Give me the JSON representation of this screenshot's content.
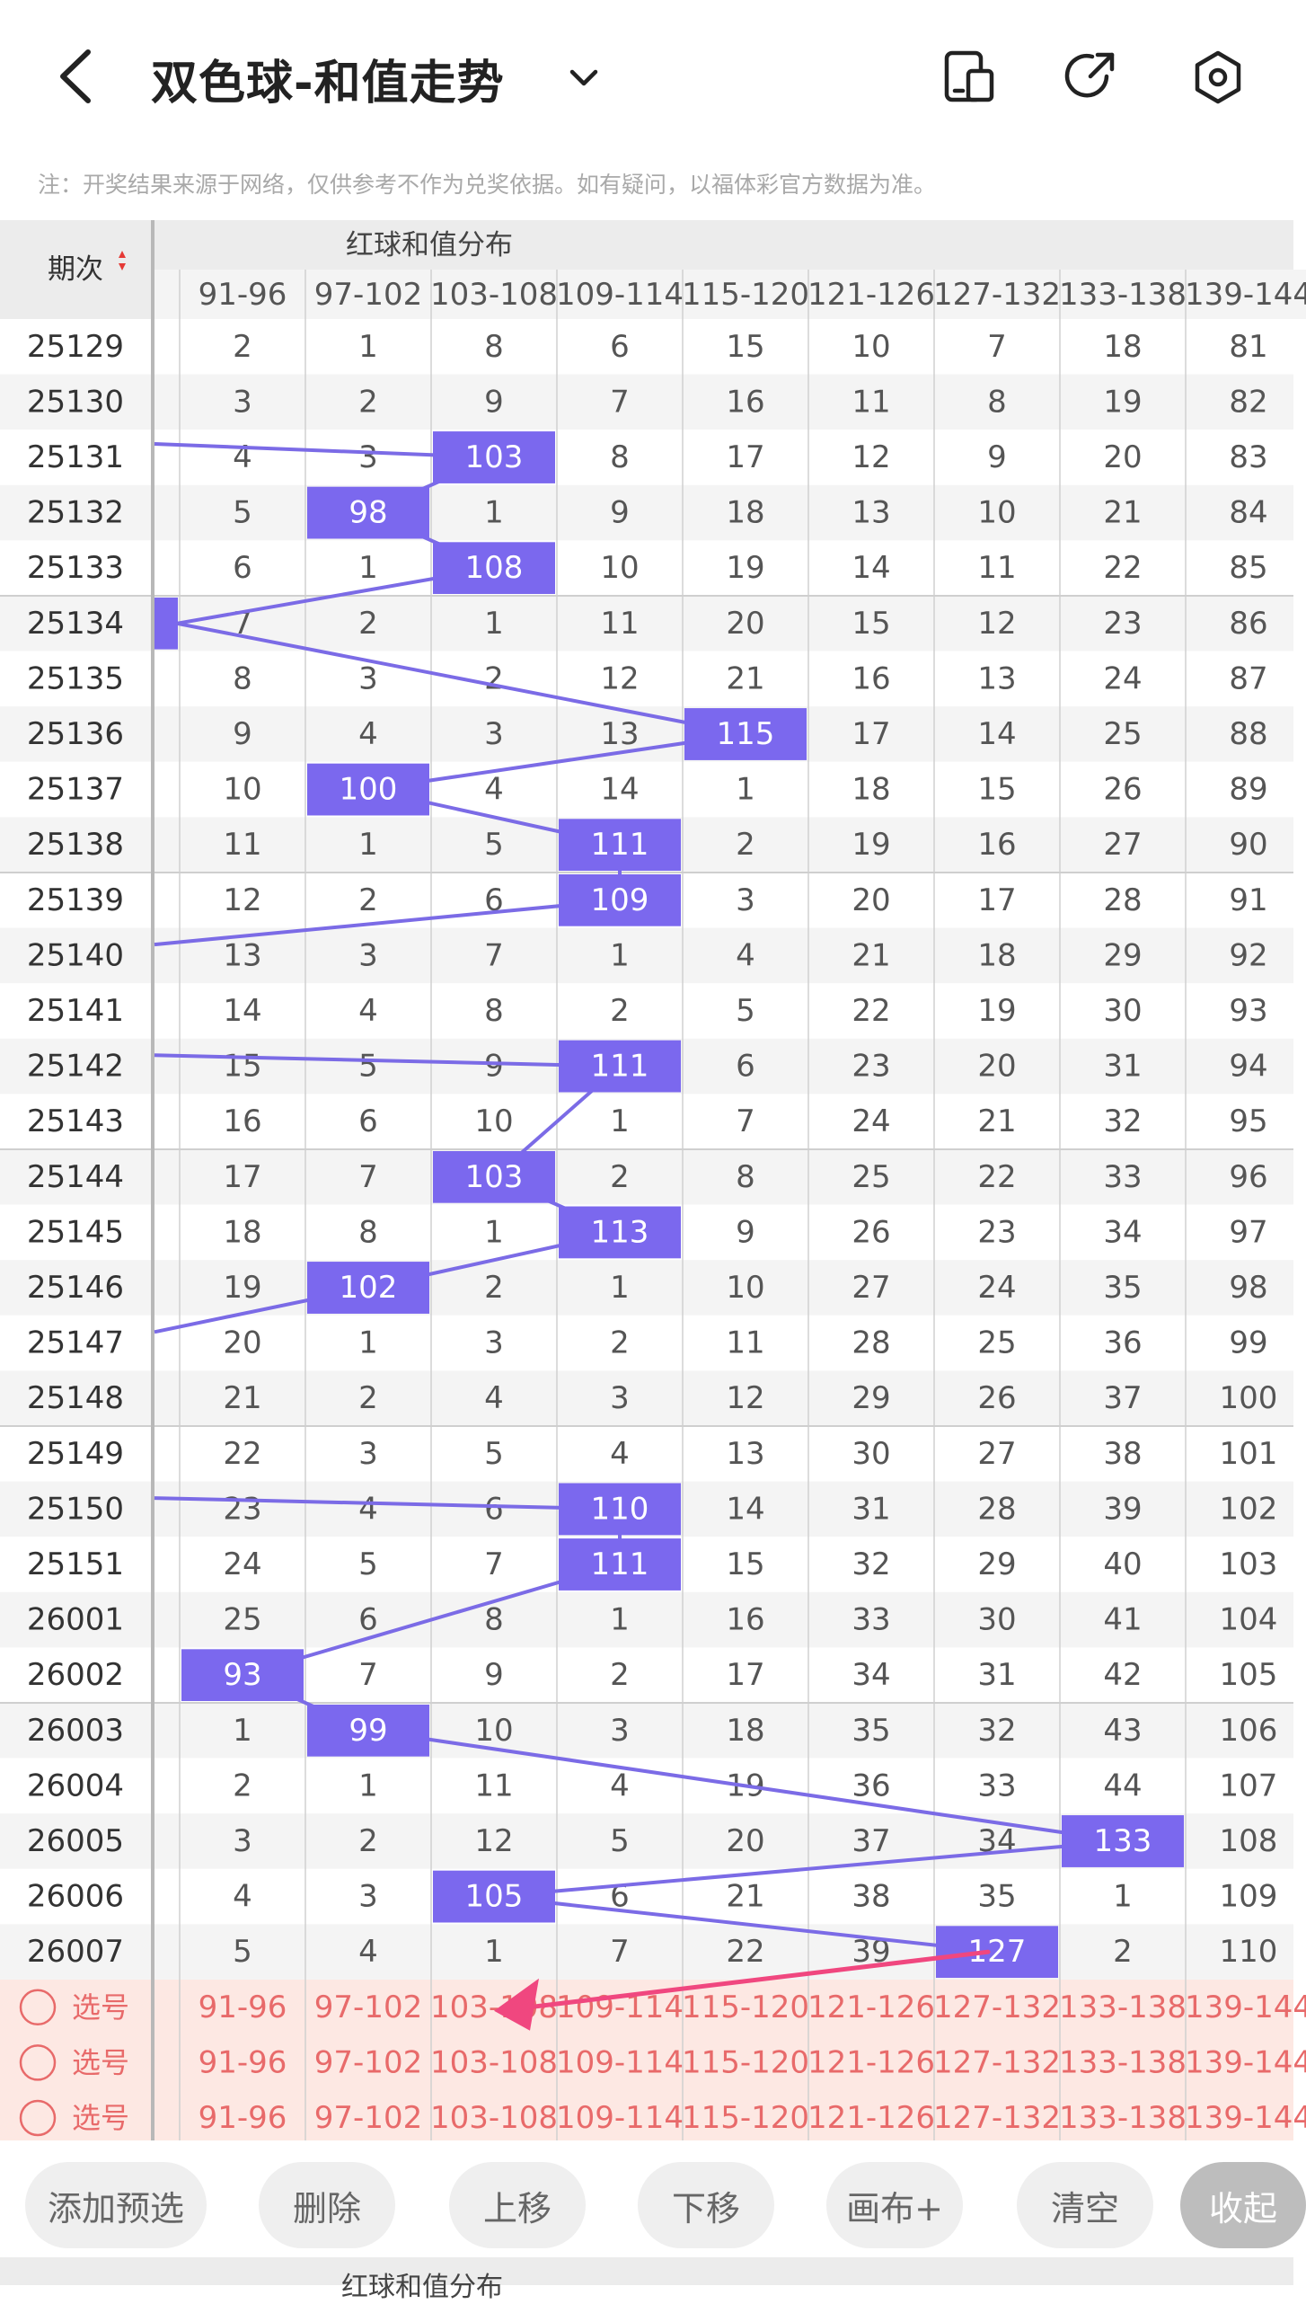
{
  "header": {
    "title": "双色球-和值走势",
    "icons": [
      "back-icon",
      "chevron-down-icon",
      "phone-screen-icon",
      "share-icon",
      "settings-icon"
    ]
  },
  "notice": "注：开奖结果来源于网络，仅供参考不作为兑奖依据。如有疑问，以福体彩官方数据为准。",
  "table": {
    "period_header": "期次",
    "group_header": "红球和值分布",
    "columns": [
      "91-96",
      "97-102",
      "103-108",
      "109-114",
      "115-120",
      "121-126",
      "127-132",
      "133-138",
      "139-144"
    ],
    "rows": [
      {
        "period": "25129",
        "cells": [
          "2",
          "1",
          "8",
          "6",
          "15",
          "10",
          "7",
          "18",
          "81"
        ],
        "hit": -1
      },
      {
        "period": "25130",
        "cells": [
          "3",
          "2",
          "9",
          "7",
          "16",
          "11",
          "8",
          "19",
          "82"
        ],
        "hit": -1
      },
      {
        "period": "25131",
        "cells": [
          "4",
          "3",
          "103",
          "8",
          "17",
          "12",
          "9",
          "20",
          "83"
        ],
        "hit": 2
      },
      {
        "period": "25132",
        "cells": [
          "5",
          "98",
          "1",
          "9",
          "18",
          "13",
          "10",
          "21",
          "84"
        ],
        "hit": 1
      },
      {
        "period": "25133",
        "cells": [
          "6",
          "1",
          "108",
          "10",
          "19",
          "14",
          "11",
          "22",
          "85"
        ],
        "hit": 2
      },
      {
        "period": "25134",
        "cells": [
          "7",
          "2",
          "1",
          "11",
          "20",
          "15",
          "12",
          "23",
          "86"
        ],
        "hit": -1
      },
      {
        "period": "25135",
        "cells": [
          "8",
          "3",
          "2",
          "12",
          "21",
          "16",
          "13",
          "24",
          "87"
        ],
        "hit": -1
      },
      {
        "period": "25136",
        "cells": [
          "9",
          "4",
          "3",
          "13",
          "115",
          "17",
          "14",
          "25",
          "88"
        ],
        "hit": 4
      },
      {
        "period": "25137",
        "cells": [
          "10",
          "100",
          "4",
          "14",
          "1",
          "18",
          "15",
          "26",
          "89"
        ],
        "hit": 1
      },
      {
        "period": "25138",
        "cells": [
          "11",
          "1",
          "5",
          "111",
          "2",
          "19",
          "16",
          "27",
          "90"
        ],
        "hit": 3
      },
      {
        "period": "25139",
        "cells": [
          "12",
          "2",
          "6",
          "109",
          "3",
          "20",
          "17",
          "28",
          "91"
        ],
        "hit": 3
      },
      {
        "period": "25140",
        "cells": [
          "13",
          "3",
          "7",
          "1",
          "4",
          "21",
          "18",
          "29",
          "92"
        ],
        "hit": -1
      },
      {
        "period": "25141",
        "cells": [
          "14",
          "4",
          "8",
          "2",
          "5",
          "22",
          "19",
          "30",
          "93"
        ],
        "hit": -1
      },
      {
        "period": "25142",
        "cells": [
          "15",
          "5",
          "9",
          "111",
          "6",
          "23",
          "20",
          "31",
          "94"
        ],
        "hit": 3
      },
      {
        "period": "25143",
        "cells": [
          "16",
          "6",
          "10",
          "1",
          "7",
          "24",
          "21",
          "32",
          "95"
        ],
        "hit": -1
      },
      {
        "period": "25144",
        "cells": [
          "17",
          "7",
          "103",
          "2",
          "8",
          "25",
          "22",
          "33",
          "96"
        ],
        "hit": 2
      },
      {
        "period": "25145",
        "cells": [
          "18",
          "8",
          "1",
          "113",
          "9",
          "26",
          "23",
          "34",
          "97"
        ],
        "hit": 3
      },
      {
        "period": "25146",
        "cells": [
          "19",
          "102",
          "2",
          "1",
          "10",
          "27",
          "24",
          "35",
          "98"
        ],
        "hit": 1
      },
      {
        "period": "25147",
        "cells": [
          "20",
          "1",
          "3",
          "2",
          "11",
          "28",
          "25",
          "36",
          "99"
        ],
        "hit": -1
      },
      {
        "period": "25148",
        "cells": [
          "21",
          "2",
          "4",
          "3",
          "12",
          "29",
          "26",
          "37",
          "100"
        ],
        "hit": -1
      },
      {
        "period": "25149",
        "cells": [
          "22",
          "3",
          "5",
          "4",
          "13",
          "30",
          "27",
          "38",
          "101"
        ],
        "hit": -1
      },
      {
        "period": "25150",
        "cells": [
          "23",
          "4",
          "6",
          "110",
          "14",
          "31",
          "28",
          "39",
          "102"
        ],
        "hit": 3
      },
      {
        "period": "25151",
        "cells": [
          "24",
          "5",
          "7",
          "111",
          "15",
          "32",
          "29",
          "40",
          "103"
        ],
        "hit": 3
      },
      {
        "period": "26001",
        "cells": [
          "25",
          "6",
          "8",
          "1",
          "16",
          "33",
          "30",
          "41",
          "104"
        ],
        "hit": -1
      },
      {
        "period": "26002",
        "cells": [
          "93",
          "7",
          "9",
          "2",
          "17",
          "34",
          "31",
          "42",
          "105"
        ],
        "hit": 0
      },
      {
        "period": "26003",
        "cells": [
          "1",
          "99",
          "10",
          "3",
          "18",
          "35",
          "32",
          "43",
          "106"
        ],
        "hit": 1
      },
      {
        "period": "26004",
        "cells": [
          "2",
          "1",
          "11",
          "4",
          "19",
          "36",
          "33",
          "44",
          "107"
        ],
        "hit": -1
      },
      {
        "period": "26005",
        "cells": [
          "3",
          "2",
          "12",
          "5",
          "20",
          "37",
          "34",
          "133",
          "108"
        ],
        "hit": 7
      },
      {
        "period": "26006",
        "cells": [
          "4",
          "3",
          "105",
          "6",
          "21",
          "38",
          "35",
          "1",
          "109"
        ],
        "hit": 2
      },
      {
        "period": "26007",
        "cells": [
          "5",
          "4",
          "1",
          "7",
          "22",
          "39",
          "127",
          "2",
          "110"
        ],
        "hit": 6
      }
    ],
    "edge_hit_rows": [
      5
    ],
    "select_label": "选号",
    "select_rows": 3
  },
  "toolbar": {
    "buttons": [
      "添加预选",
      "删除",
      "上移",
      "下移",
      "画布+",
      "清空",
      "收起"
    ]
  },
  "bottom_strip": {
    "group_header": "红球和值分布"
  },
  "colors": {
    "accent": "#7b68ee",
    "line": "#7b6be6",
    "select_bg": "#fde8e3",
    "select_text": "#e86a6a",
    "arrow": "#f0477f",
    "sort_up": "#e53935",
    "sort_down": "#e53935"
  }
}
